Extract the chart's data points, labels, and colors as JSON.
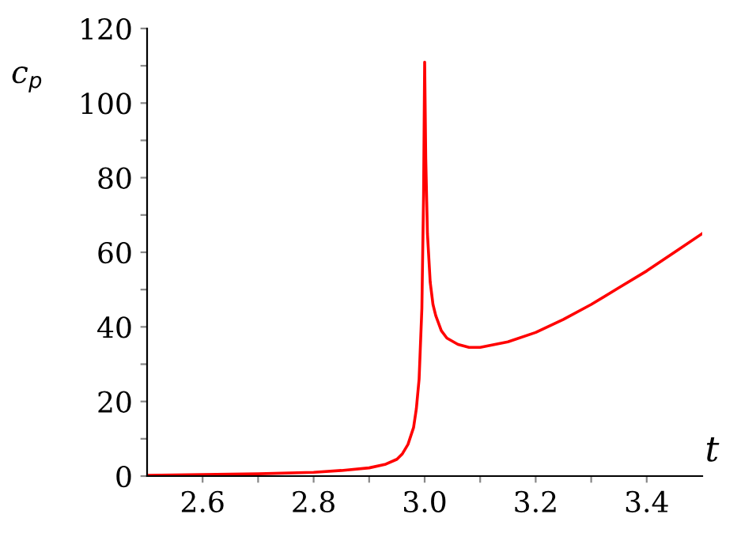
{
  "chart_data": {
    "type": "line",
    "xlabel": "t",
    "ylabel": "c$_{p}$",
    "x": [
      2.5,
      2.6,
      2.7,
      2.8,
      2.85,
      2.9,
      2.93,
      2.95,
      2.96,
      2.97,
      2.98,
      2.985,
      2.99,
      2.995,
      2.998,
      3.0,
      3.002,
      3.005,
      3.01,
      3.015,
      3.02,
      3.03,
      3.04,
      3.06,
      3.08,
      3.1,
      3.15,
      3.2,
      3.25,
      3.3,
      3.35,
      3.4,
      3.45,
      3.5
    ],
    "series": [
      {
        "color": "#ff0000",
        "values": [
          0.2,
          0.4,
          0.6,
          1,
          1.5,
          2.2,
          3.2,
          4.5,
          6,
          8.5,
          13,
          18,
          26,
          45,
          75,
          111,
          85,
          65,
          52,
          46,
          43,
          39,
          37,
          35.3,
          34.5,
          34.5,
          36,
          38.5,
          42,
          46,
          50.5,
          55,
          60,
          65
        ]
      }
    ],
    "xlim": [
      2.5,
      3.5
    ],
    "ylim": [
      0,
      120
    ],
    "xticks": [
      2.6,
      {
        "value": 2.7,
        "label": null
      },
      2.8,
      {
        "value": 2.9,
        "label": null
      },
      {
        "value": 3.0,
        "label": "3.0"
      },
      {
        "value": 3.1,
        "label": null
      },
      3.2,
      {
        "value": 3.3,
        "label": null
      },
      3.4
    ],
    "yticks": [
      0,
      {
        "value": 10,
        "label": null
      },
      20,
      {
        "value": 30,
        "label": null
      },
      40,
      {
        "value": 50,
        "label": null
      },
      60,
      {
        "value": 70,
        "label": null
      },
      80,
      {
        "value": 90,
        "label": null
      },
      100,
      {
        "value": 110,
        "label": null
      },
      120
    ],
    "grid": false,
    "legend": false,
    "marker": "none",
    "line_style": "solid"
  }
}
